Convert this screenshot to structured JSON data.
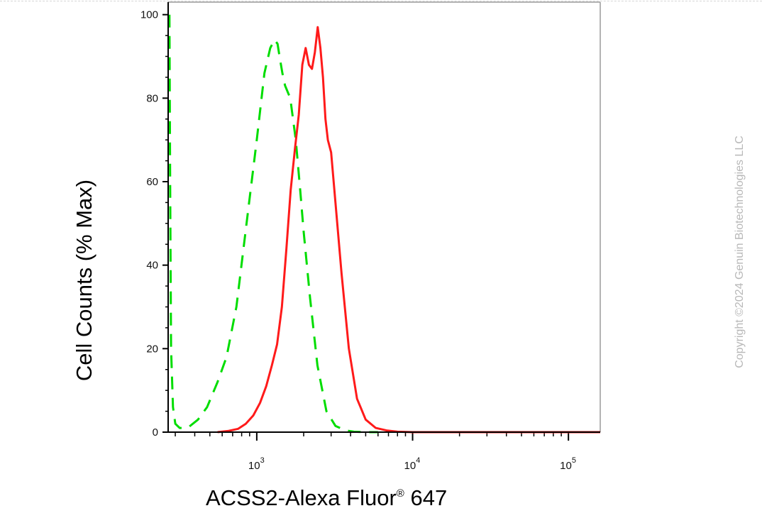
{
  "watermark": "Copyright ©2024 Genuin Biotechnologies LLC",
  "chart_data": {
    "type": "line",
    "ylabel": "Cell Counts (% Max)",
    "xlabel_main": "ACSS2-Alexa Fluor",
    "xlabel_reg": "®",
    "xlabel_tail": " 647",
    "xscale": "log",
    "xlim": [
      270,
      160000
    ],
    "ylim": [
      0,
      103
    ],
    "yticks": [
      0,
      20,
      40,
      60,
      80,
      100
    ],
    "yticks_labels": [
      "0",
      "20",
      "40",
      "60",
      "80",
      "100"
    ],
    "xticks_major": [
      {
        "value": 1000,
        "base": "10",
        "exp": "3"
      },
      {
        "value": 10000,
        "base": "10",
        "exp": "4"
      },
      {
        "value": 100000,
        "base": "10",
        "exp": "5"
      }
    ],
    "grid": false,
    "series": [
      {
        "color": "#00dd00",
        "dash": "dashed",
        "x": [
          275,
          278,
          282,
          290,
          300,
          320,
          360,
          420,
          480,
          560,
          640,
          740,
          860,
          1000,
          1120,
          1220,
          1300,
          1360,
          1400,
          1460,
          1520,
          1640,
          1780,
          1900,
          2000,
          2200,
          2450,
          2800,
          3200,
          3700,
          4200,
          5000,
          6000
        ],
        "y": [
          100,
          60,
          20,
          6,
          2,
          1,
          1,
          3,
          6,
          12,
          18,
          30,
          50,
          70,
          86,
          92,
          94,
          93,
          90,
          86,
          83,
          80,
          70,
          58,
          48,
          32,
          16,
          5,
          1.5,
          0.4,
          0.1,
          0,
          0
        ]
      },
      {
        "color": "#ff1a1a",
        "dash": "solid",
        "x": [
          560,
          660,
          760,
          850,
          950,
          1050,
          1150,
          1250,
          1350,
          1450,
          1550,
          1650,
          1760,
          1860,
          1960,
          2060,
          2160,
          2260,
          2360,
          2460,
          2560,
          2660,
          2760,
          2860,
          3000,
          3200,
          3500,
          3900,
          4400,
          5000,
          5800,
          6800,
          8000,
          10000,
          30000,
          160000
        ],
        "y": [
          0,
          0.3,
          0.8,
          2,
          4,
          7,
          11,
          16,
          21,
          30,
          44,
          58,
          68,
          76,
          88,
          92,
          88,
          87,
          91,
          97,
          92,
          85,
          75,
          70,
          67,
          55,
          38,
          20,
          8,
          3,
          1,
          0.4,
          0.1,
          0,
          0,
          0
        ]
      }
    ]
  }
}
